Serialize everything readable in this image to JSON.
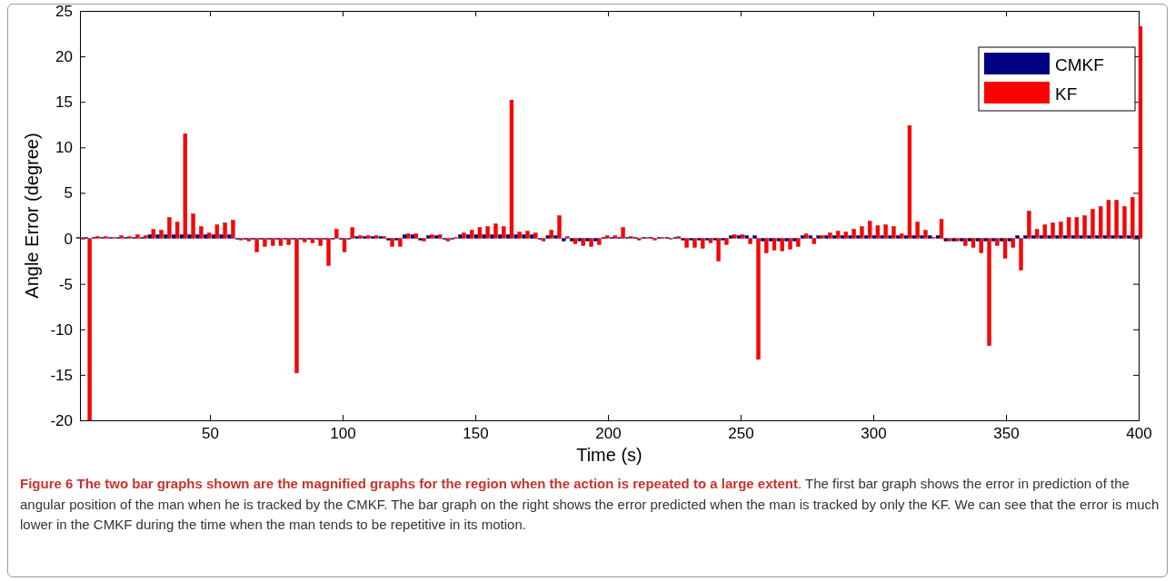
{
  "chart_data": {
    "type": "bar",
    "xlabel": "Time (s)",
    "ylabel": "Angle Error (degree)",
    "xlim": [
      1,
      400
    ],
    "xticks": [
      50,
      100,
      150,
      200,
      250,
      300,
      350,
      400
    ],
    "ylim": [
      -20,
      25
    ],
    "yticks": [
      -20,
      -15,
      -10,
      -5,
      0,
      5,
      10,
      15,
      20,
      25
    ],
    "grid": false,
    "legend": "top right",
    "x": [
      1,
      4,
      7,
      10,
      13,
      16,
      19,
      22,
      25,
      28,
      31,
      34,
      37,
      40,
      43,
      46,
      49,
      52,
      55,
      58,
      61,
      64,
      67,
      70,
      73,
      76,
      79,
      82,
      85,
      88,
      91,
      94,
      97,
      100,
      103,
      106,
      109,
      112,
      115,
      118,
      121,
      124,
      127,
      130,
      133,
      136,
      139,
      142,
      145,
      148,
      151,
      154,
      157,
      160,
      163,
      166,
      169,
      172,
      175,
      178,
      181,
      184,
      187,
      190,
      193,
      196,
      199,
      202,
      205,
      208,
      211,
      214,
      217,
      220,
      223,
      226,
      229,
      232,
      235,
      238,
      241,
      244,
      247,
      250,
      253,
      256,
      259,
      262,
      265,
      268,
      271,
      274,
      277,
      280,
      283,
      286,
      289,
      292,
      295,
      298,
      301,
      304,
      307,
      310,
      313,
      316,
      319,
      322,
      325,
      328,
      331,
      334,
      337,
      340,
      343,
      346,
      349,
      352,
      355,
      358,
      361,
      364,
      367,
      370,
      373,
      376,
      379,
      382,
      385,
      388,
      391,
      394,
      397,
      400
    ],
    "series": [
      {
        "name": "CMKF",
        "color": "#000080",
        "values": [
          0.1,
          0.1,
          0.1,
          0.1,
          0.1,
          0.1,
          0.1,
          0.1,
          0.1,
          0.4,
          0.4,
          0.4,
          0.4,
          0.4,
          0.4,
          0.4,
          0.4,
          0.4,
          0.4,
          0.4,
          -0.1,
          -0.1,
          -0.1,
          -0.1,
          -0.1,
          -0.1,
          -0.1,
          -0.1,
          -0.1,
          -0.1,
          -0.1,
          -0.1,
          -0.1,
          -0.1,
          -0.1,
          0.2,
          0.2,
          0.2,
          0.2,
          -0.2,
          -0.2,
          0.4,
          0.4,
          -0.2,
          0.3,
          0.3,
          -0.1,
          -0.1,
          0.4,
          0.4,
          0.4,
          0.4,
          0.4,
          0.4,
          0.4,
          0.4,
          0.4,
          0.4,
          -0.1,
          0.3,
          0.3,
          -0.3,
          -0.3,
          -0.3,
          -0.3,
          -0.3,
          0.1,
          0.1,
          0.1,
          0.1,
          0.1,
          0.1,
          0.1,
          0.1,
          0.1,
          0.1,
          -0.2,
          -0.2,
          -0.2,
          -0.2,
          -0.2,
          -0.2,
          0.3,
          0.3,
          0.3,
          0.3,
          -0.3,
          -0.3,
          -0.3,
          -0.3,
          -0.3,
          0.3,
          0.3,
          0.3,
          0.3,
          0.3,
          0.3,
          0.3,
          0.3,
          0.3,
          0.3,
          0.3,
          0.3,
          0.3,
          0.3,
          0.3,
          0.3,
          0.3,
          0.3,
          -0.3,
          -0.3,
          -0.3,
          -0.3,
          -0.3,
          -0.3,
          -0.3,
          -0.3,
          -0.3,
          0.3,
          0.3,
          0.3,
          0.3,
          0.3,
          0.3,
          0.3,
          0.3,
          0.3,
          0.3,
          0.3,
          0.3,
          0.3,
          0.3,
          0.3,
          0.3
        ]
      },
      {
        "name": "KF",
        "color": "#ff0000",
        "values": [
          0.1,
          -20,
          0.2,
          0.2,
          0.1,
          0.3,
          0.2,
          0.4,
          0.3,
          1.0,
          0.9,
          2.3,
          1.8,
          11.5,
          2.7,
          1.3,
          0.6,
          1.5,
          1.7,
          2.0,
          -0.2,
          -0.3,
          -1.5,
          -0.9,
          -0.8,
          -0.8,
          -0.7,
          -14.8,
          -0.4,
          -0.5,
          -0.8,
          -3.0,
          1.0,
          -1.5,
          1.2,
          0.3,
          0.3,
          0.3,
          0.2,
          -0.9,
          -0.9,
          0.5,
          0.5,
          -0.3,
          0.4,
          0.4,
          -0.3,
          0.1,
          0.6,
          0.9,
          1.2,
          1.3,
          1.6,
          1.3,
          15.2,
          0.7,
          0.8,
          0.6,
          -0.3,
          0.9,
          2.5,
          0.2,
          -0.6,
          -0.8,
          -0.9,
          -0.7,
          0.3,
          0.3,
          1.2,
          0.2,
          -0.2,
          0.1,
          -0.2,
          0.1,
          -0.1,
          0.2,
          -1.0,
          -1.0,
          -1.1,
          -0.5,
          -2.5,
          -0.7,
          0.4,
          0.4,
          -0.6,
          -13.3,
          -1.6,
          -1.3,
          -1.4,
          -1.2,
          -0.9,
          0.5,
          -0.6,
          0.3,
          0.6,
          0.8,
          0.7,
          1.0,
          1.3,
          1.9,
          1.4,
          1.5,
          1.3,
          0.5,
          12.4,
          1.8,
          0.9,
          0.1,
          2.1,
          -0.3,
          -0.3,
          -0.8,
          -1.0,
          -1.6,
          -11.8,
          -0.8,
          -2.2,
          -1.0,
          -3.5,
          3.0,
          1.0,
          1.5,
          1.7,
          1.8,
          2.3,
          2.3,
          2.5,
          3.2,
          3.5,
          4.2,
          4.2,
          3.5,
          4.5,
          23.3
        ]
      }
    ],
    "annotations": [
      "Figure 6 The two bar graphs shown are the magnified graphs for the region when the action is repeated to a large extent",
      ". The first bar graph shows the error in prediction of the angular position of the man when he is tracked by the CMKF. The bar graph on the right shows the error predicted when the man is tracked by only the KF. We can see that the error is much lower in the CMKF during the time when the man tends to be repetitive in its motion."
    ]
  }
}
